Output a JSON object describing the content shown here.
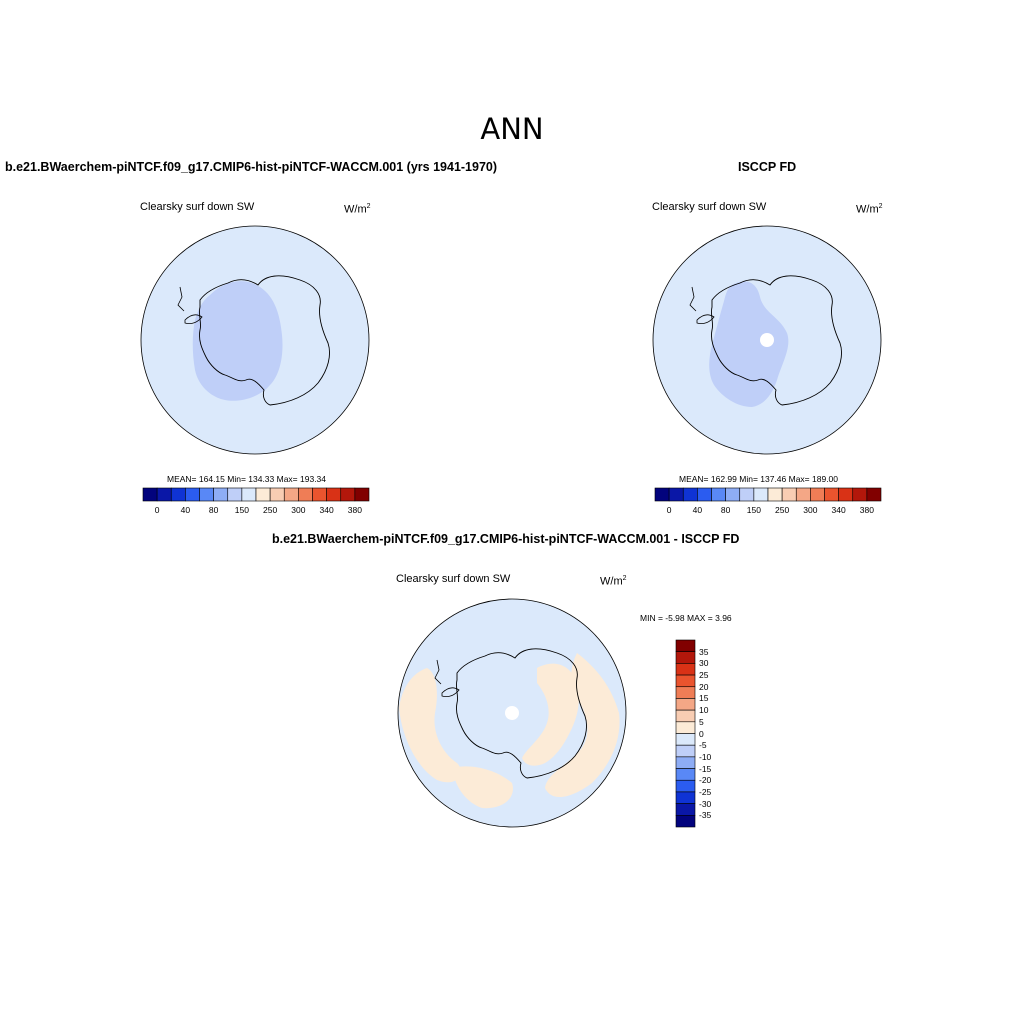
{
  "title": "ANN",
  "units_label": "W/m",
  "units_sup": "2",
  "panels": {
    "model": {
      "title": "b.e21.BWaerchem-piNTCF.f09_g17.CMIP6-hist-piNTCF-WACCM.001 (yrs 1941-1970)",
      "variable": "Clearsky surf down SW",
      "stats": "MEAN= 164.15  Min= 134.33  Max= 193.34"
    },
    "obs": {
      "title": "ISCCP FD",
      "variable": "Clearsky surf down SW",
      "stats": "MEAN= 162.99  Min= 137.46  Max= 189.00"
    },
    "diff": {
      "title": "b.e21.BWaerchem-piNTCF.f09_g17.CMIP6-hist-piNTCF-WACCM.001 - ISCCP FD",
      "variable": "Clearsky surf down SW",
      "stats": "MIN =  -5.98 MAX =   3.96"
    }
  },
  "colorbar_field": {
    "ticks": [
      "0",
      "40",
      "80",
      "150",
      "250",
      "300",
      "340",
      "380"
    ],
    "colors": [
      "#02037d",
      "#0a17a7",
      "#0f33d4",
      "#2b5cf0",
      "#5988f6",
      "#8eadf5",
      "#bfcff8",
      "#dbe9fb",
      "#fcebd7",
      "#f8cdb3",
      "#f4a786",
      "#ef7d56",
      "#ea542e",
      "#d93216",
      "#b3170b",
      "#810000"
    ]
  },
  "colorbar_diff": {
    "ticks": [
      "35",
      "30",
      "25",
      "20",
      "15",
      "10",
      "5",
      "0",
      "-5",
      "-10",
      "-15",
      "-20",
      "-25",
      "-30",
      "-35"
    ],
    "colors": [
      "#810000",
      "#b3170b",
      "#d93216",
      "#ea542e",
      "#ef7d56",
      "#f4a786",
      "#f8cdb3",
      "#fcebd7",
      "#dbe9fb",
      "#bfcff8",
      "#8eadf5",
      "#5988f6",
      "#2b5cf0",
      "#0f33d4",
      "#0a17a7",
      "#02037d"
    ]
  },
  "map_colors": {
    "ocean_field": "#dbe9fb",
    "interior_field": "#bfcff8",
    "positive_diff": "#fcebd7",
    "ocean_diff": "#dbe9fb",
    "negative_diff": "#bfcff8"
  }
}
